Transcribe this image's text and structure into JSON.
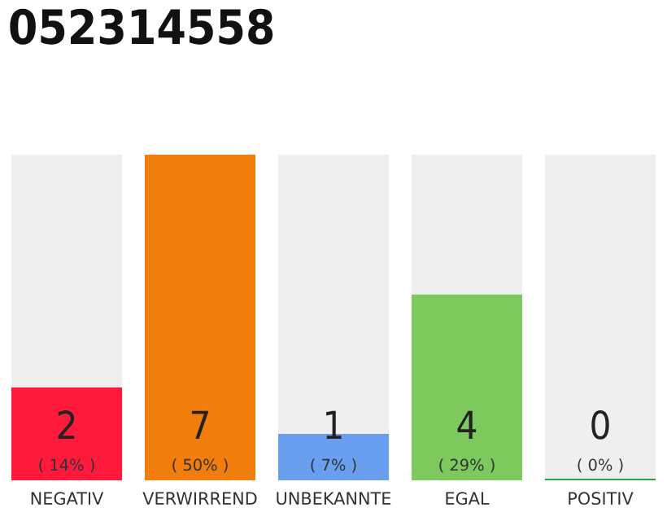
{
  "chart_data": {
    "type": "bar",
    "title": "052314558",
    "stacked": true,
    "categories": [
      "NEGATIV",
      "VERWIRREND",
      "UNBEKANNTE",
      "EGAL",
      "POSITIV"
    ],
    "ylim": [
      0,
      7
    ],
    "grid": false,
    "legend": false,
    "series": [
      {
        "colors": [
          "#ff1a3c",
          "#f07d0c",
          "#6a9ff0",
          "#7dc95e",
          "#28a745"
        ],
        "values": [
          2,
          7,
          1,
          4,
          0
        ],
        "value_labels": [
          "2\n( 14% )",
          "7\n( 50% )",
          "1\n( 7% )",
          "4\n( 29% )",
          "0\n( 0% )"
        ]
      },
      {
        "color": "#efefef",
        "values": [
          5,
          0,
          6,
          3,
          7
        ]
      }
    ]
  }
}
